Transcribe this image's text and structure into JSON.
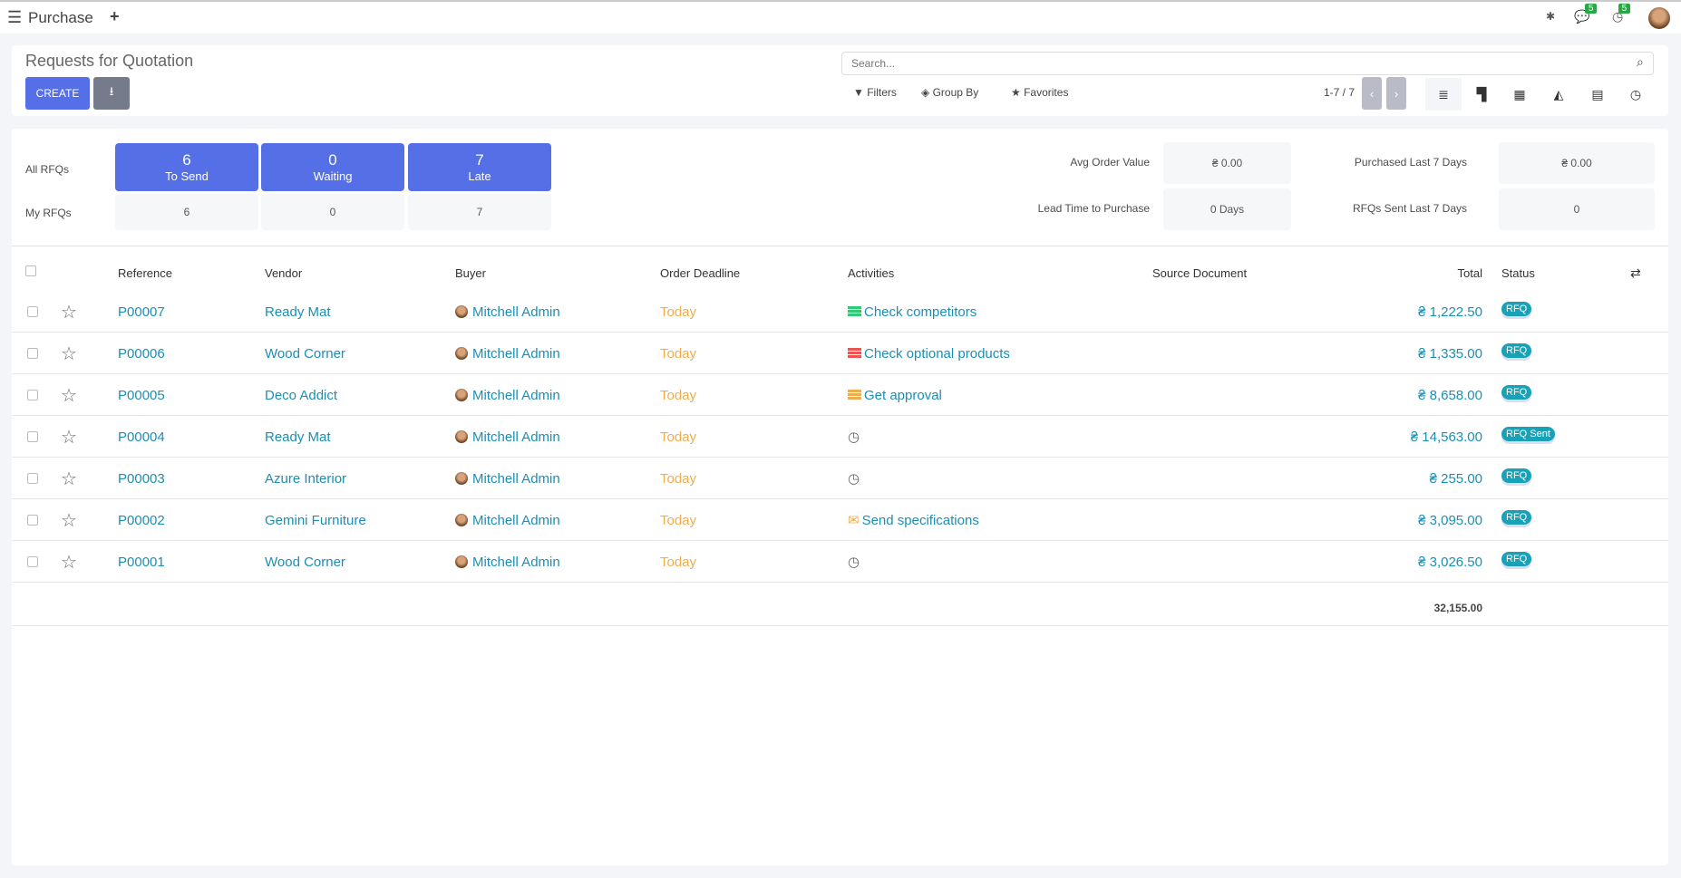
{
  "topbar": {
    "app": "Purchase",
    "bug_icon": "bug-icon",
    "messages_count": "5",
    "activities_count": "5"
  },
  "control": {
    "title": "Requests for Quotation",
    "create_label": "CREATE",
    "search_placeholder": "Search...",
    "filters": "Filters",
    "group_by": "Group By",
    "favorites": "Favorites",
    "pager": "1-7 / 7"
  },
  "dashboard": {
    "all_label": "All RFQs",
    "my_label": "My RFQs",
    "stats": [
      {
        "count": "6",
        "label": "To Send",
        "mine": "6"
      },
      {
        "count": "0",
        "label": "Waiting",
        "mine": "0"
      },
      {
        "count": "7",
        "label": "Late",
        "mine": "7"
      }
    ],
    "kpis": [
      {
        "label": "Avg Order Value",
        "value": "₴ 0.00"
      },
      {
        "label": "Purchased Last 7 Days",
        "value": "₴ 0.00"
      },
      {
        "label": "Lead Time to Purchase",
        "value": "0 Days"
      },
      {
        "label": "RFQs Sent Last 7 Days",
        "value": "0"
      }
    ]
  },
  "table": {
    "headers": {
      "reference": "Reference",
      "vendor": "Vendor",
      "buyer": "Buyer",
      "deadline": "Order Deadline",
      "activities": "Activities",
      "source": "Source Document",
      "total": "Total",
      "status": "Status"
    },
    "rows": [
      {
        "ref": "P00007",
        "vendor": "Ready Mat",
        "buyer": "Mitchell Admin",
        "deadline": "Today",
        "activity": "Check competitors",
        "activity_icon": "todo-green",
        "total": "₴ 1,222.50",
        "status": "RFQ"
      },
      {
        "ref": "P00006",
        "vendor": "Wood Corner",
        "buyer": "Mitchell Admin",
        "deadline": "Today",
        "activity": "Check optional products",
        "activity_icon": "todo-red",
        "total": "₴ 1,335.00",
        "status": "RFQ"
      },
      {
        "ref": "P00005",
        "vendor": "Deco Addict",
        "buyer": "Mitchell Admin",
        "deadline": "Today",
        "activity": "Get approval",
        "activity_icon": "todo-orange",
        "total": "₴ 8,658.00",
        "status": "RFQ"
      },
      {
        "ref": "P00004",
        "vendor": "Ready Mat",
        "buyer": "Mitchell Admin",
        "deadline": "Today",
        "activity": "",
        "activity_icon": "clock",
        "total": "₴ 14,563.00",
        "status": "RFQ Sent"
      },
      {
        "ref": "P00003",
        "vendor": "Azure Interior",
        "buyer": "Mitchell Admin",
        "deadline": "Today",
        "activity": "",
        "activity_icon": "clock",
        "total": "₴ 255.00",
        "status": "RFQ"
      },
      {
        "ref": "P00002",
        "vendor": "Gemini Furniture",
        "buyer": "Mitchell Admin",
        "deadline": "Today",
        "activity": "Send specifications",
        "activity_icon": "envelope-orange",
        "total": "₴ 3,095.00",
        "status": "RFQ"
      },
      {
        "ref": "P00001",
        "vendor": "Wood Corner",
        "buyer": "Mitchell Admin",
        "deadline": "Today",
        "activity": "",
        "activity_icon": "clock",
        "total": "₴ 3,026.50",
        "status": "RFQ"
      }
    ],
    "sum_total": "32,155.00"
  },
  "colors": {
    "primary": "#5570e6",
    "link": "#1b8fb3",
    "today": "#f0ad4e",
    "badge": "#17a2b8"
  }
}
